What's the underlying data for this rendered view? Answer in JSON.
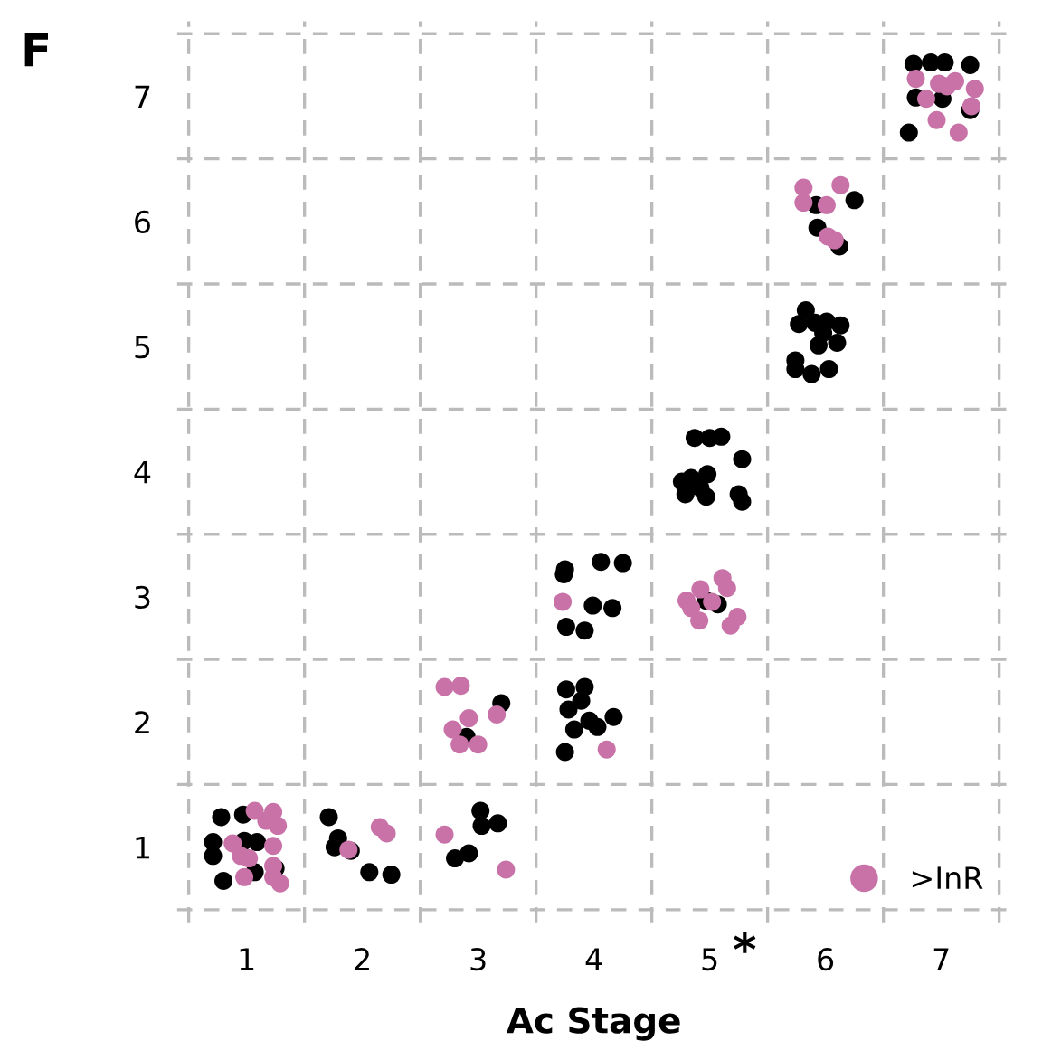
{
  "chart_data": {
    "type": "scatter",
    "xlabel": "Ac Stage",
    "annotations": [
      "F",
      "*"
    ],
    "xlim": [
      0.4,
      7.6
    ],
    "ylim": [
      0.4,
      7.6
    ],
    "xticks": [
      1,
      2,
      3,
      4,
      5,
      6,
      7,
      {
        "value": 0.5,
        "label": null
      },
      {
        "value": 1.5,
        "label": null
      },
      {
        "value": 2.5,
        "label": null
      },
      {
        "value": 3.5,
        "label": null
      },
      {
        "value": 4.5,
        "label": null
      },
      {
        "value": 5.5,
        "label": null
      },
      {
        "value": 6.5,
        "label": null
      },
      {
        "value": 7.5,
        "label": null
      }
    ],
    "yticks": [
      1,
      2,
      3,
      4,
      5,
      6,
      7,
      {
        "value": 0.5,
        "label": null
      },
      {
        "value": 1.5,
        "label": null
      },
      {
        "value": 2.5,
        "label": null
      },
      {
        "value": 3.5,
        "label": null
      },
      {
        "value": 4.5,
        "label": null
      },
      {
        "value": 5.5,
        "label": null
      },
      {
        "value": 6.5,
        "label": null
      },
      {
        "value": 7.5,
        "label": null
      }
    ],
    "grid": true,
    "legend": "bottom right",
    "marker": "circle",
    "series": [
      {
        "color": "#000000",
        "x": [
          0.78,
          0.97,
          0.71,
          0.71,
          0.98,
          1.09,
          0.8,
          1.07,
          1.25,
          1.71,
          1.79,
          1.76,
          1.9,
          2.06,
          2.25,
          3.02,
          3.03,
          3.17,
          2.8,
          2.92,
          3.2,
          2.9,
          3.76,
          3.92,
          3.89,
          3.78,
          4.17,
          3.96,
          3.83,
          4.03,
          3.75,
          3.75,
          3.74,
          4.06,
          4.25,
          3.99,
          4.16,
          3.76,
          3.92,
          4.97,
          5.07,
          4.87,
          5.0,
          5.1,
          5.28,
          4.76,
          4.84,
          4.98,
          4.79,
          4.97,
          4.92,
          5.25,
          5.28,
          5.83,
          5.77,
          5.91,
          6.01,
          6.13,
          5.98,
          6.1,
          5.94,
          5.74,
          5.74,
          5.88,
          6.03,
          5.92,
          6.25,
          5.93,
          6.12,
          6.76,
          6.91,
          7.03,
          7.25,
          6.78,
          7.01,
          7.25,
          6.72
        ],
        "values": [
          1.24,
          1.26,
          1.04,
          0.93,
          1.05,
          1.04,
          0.73,
          0.8,
          0.83,
          1.24,
          1.07,
          1.0,
          0.97,
          0.8,
          0.78,
          1.29,
          1.17,
          1.19,
          0.91,
          0.95,
          2.15,
          1.88,
          2.26,
          2.28,
          2.17,
          2.1,
          2.04,
          2.01,
          1.94,
          1.96,
          1.76,
          3.22,
          3.18,
          3.28,
          3.27,
          2.93,
          2.91,
          2.76,
          2.73,
          2.97,
          2.94,
          4.27,
          4.27,
          4.28,
          4.1,
          3.92,
          3.95,
          3.98,
          3.82,
          3.8,
          3.87,
          3.82,
          3.76,
          5.29,
          5.18,
          5.19,
          5.2,
          5.17,
          5.11,
          5.03,
          5.01,
          4.89,
          4.82,
          4.78,
          4.82,
          6.13,
          6.17,
          5.95,
          5.8,
          7.26,
          7.27,
          7.27,
          7.25,
          6.99,
          6.98,
          6.89,
          6.71
        ]
      },
      {
        "name": ">InR",
        "color": "#c972a8",
        "x": [
          1.07,
          1.23,
          1.17,
          1.27,
          0.88,
          0.95,
          1.02,
          1.23,
          1.23,
          0.98,
          1.23,
          1.29,
          2.15,
          2.21,
          1.88,
          2.71,
          3.24,
          2.71,
          2.85,
          2.92,
          2.78,
          3.16,
          2.84,
          3.0,
          4.11,
          3.73,
          5.11,
          5.15,
          4.92,
          4.8,
          4.84,
          5.02,
          4.91,
          5.24,
          5.18,
          5.81,
          6.13,
          5.81,
          6.01,
          6.02,
          6.08,
          6.78,
          6.98,
          7.12,
          7.05,
          7.29,
          6.87,
          7.26,
          6.96,
          7.15
        ],
        "values": [
          1.29,
          1.28,
          1.21,
          1.17,
          1.03,
          0.93,
          0.91,
          1.01,
          0.85,
          0.76,
          0.76,
          0.71,
          1.16,
          1.11,
          0.98,
          1.1,
          0.82,
          2.28,
          2.29,
          2.03,
          1.94,
          2.06,
          1.82,
          1.82,
          1.78,
          2.96,
          3.15,
          3.07,
          3.06,
          2.97,
          2.91,
          2.96,
          2.81,
          2.84,
          2.77,
          6.27,
          6.29,
          6.15,
          6.13,
          5.88,
          5.85,
          7.14,
          7.1,
          7.12,
          7.08,
          7.06,
          6.98,
          6.92,
          6.81,
          6.71
        ]
      }
    ]
  }
}
